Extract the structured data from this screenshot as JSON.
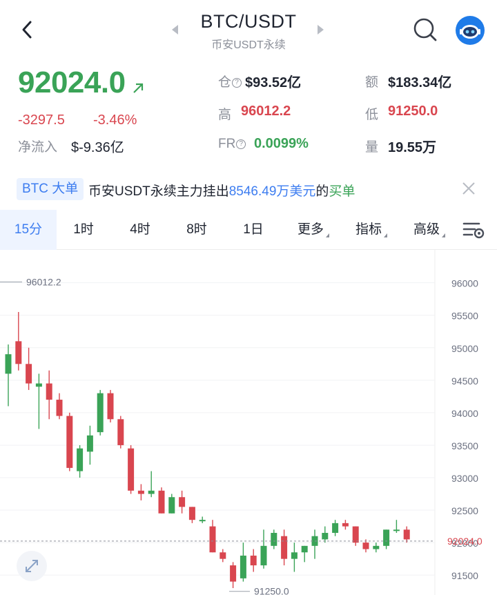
{
  "header": {
    "title": "BTC/USDT",
    "subtitle": "币安USDT永续",
    "icons": [
      "back-arrow-icon",
      "prev-symbol-icon",
      "next-symbol-icon",
      "search-icon",
      "robot-avatar-icon"
    ]
  },
  "ticker": {
    "price": "92024.0",
    "change": "-3297.5",
    "change_pct": "-3.46%",
    "inflow_label": "净流入",
    "inflow_value": "$-9.36亿",
    "open_interest_label": "仓",
    "open_interest_value": "$93.52亿",
    "turnover_label": "额",
    "turnover_value": "$183.34亿",
    "high_label": "高",
    "high_value": "96012.2",
    "low_label": "低",
    "low_value": "91250.0",
    "fr_label": "FR",
    "fr_value": "0.0099%",
    "volume_label": "量",
    "volume_value": "19.55万",
    "qmark": "?"
  },
  "banner": {
    "badge": "BTC 大单",
    "text_prefix": "币安USDT永续主力挂出",
    "amount": "8546.49万美元",
    "text_mid": "的",
    "side": "买单"
  },
  "tabs": [
    {
      "label": "15分",
      "active": true
    },
    {
      "label": "1时"
    },
    {
      "label": "4时"
    },
    {
      "label": "8时"
    },
    {
      "label": "1日"
    },
    {
      "label": "更多"
    },
    {
      "label": "指标"
    },
    {
      "label": "高级"
    }
  ],
  "colors": {
    "up": "#3aa357",
    "down": "#d9464f",
    "accent": "#3d7df0"
  },
  "chart_data": {
    "type": "candlestick",
    "interval": "15分",
    "y_ticks": [
      96000,
      95500,
      95000,
      94500,
      94000,
      93500,
      93000,
      92500,
      92000,
      91500
    ],
    "y_tick_labels": [
      "96000",
      "95500",
      "95000",
      "94500",
      "94000",
      "93500",
      "93000",
      "92500",
      "92000",
      "91500"
    ],
    "ylim": [
      91300,
      96400
    ],
    "current_price": 92024.0,
    "current_price_label": "92024.0",
    "high_marker": {
      "value": 96012.2,
      "label": "96012.2"
    },
    "low_marker": {
      "value": 91250.0,
      "label": "91250.0"
    },
    "candles": [
      {
        "o": 94600,
        "h": 95050,
        "l": 94100,
        "c": 94900
      },
      {
        "o": 95100,
        "h": 95550,
        "l": 94650,
        "c": 94750
      },
      {
        "o": 94750,
        "h": 95000,
        "l": 94350,
        "c": 94450
      },
      {
        "o": 94400,
        "h": 94600,
        "l": 93750,
        "c": 94450
      },
      {
        "o": 94450,
        "h": 94650,
        "l": 93900,
        "c": 94200
      },
      {
        "o": 94200,
        "h": 94300,
        "l": 93900,
        "c": 93950
      },
      {
        "o": 93950,
        "h": 94000,
        "l": 93100,
        "c": 93150
      },
      {
        "o": 93100,
        "h": 93500,
        "l": 93000,
        "c": 93450
      },
      {
        "o": 93400,
        "h": 93800,
        "l": 93200,
        "c": 93650
      },
      {
        "o": 93700,
        "h": 94350,
        "l": 93650,
        "c": 94300
      },
      {
        "o": 94300,
        "h": 94350,
        "l": 93850,
        "c": 93900
      },
      {
        "o": 93900,
        "h": 93950,
        "l": 93450,
        "c": 93500
      },
      {
        "o": 93450,
        "h": 93500,
        "l": 92750,
        "c": 92800
      },
      {
        "o": 92800,
        "h": 92900,
        "l": 92650,
        "c": 92750
      },
      {
        "o": 92750,
        "h": 93100,
        "l": 92700,
        "c": 92800
      },
      {
        "o": 92800,
        "h": 92850,
        "l": 92450,
        "c": 92450
      },
      {
        "o": 92450,
        "h": 92750,
        "l": 92450,
        "c": 92700
      },
      {
        "o": 92700,
        "h": 92800,
        "l": 92450,
        "c": 92550
      },
      {
        "o": 92550,
        "h": 92550,
        "l": 92300,
        "c": 92350
      },
      {
        "o": 92350,
        "h": 92400,
        "l": 92300,
        "c": 92350
      },
      {
        "o": 92250,
        "h": 92350,
        "l": 91850,
        "c": 91850
      },
      {
        "o": 91850,
        "h": 91900,
        "l": 91700,
        "c": 91750
      },
      {
        "o": 91650,
        "h": 91700,
        "l": 91300,
        "c": 91400
      },
      {
        "o": 91450,
        "h": 92000,
        "l": 91400,
        "c": 91800
      },
      {
        "o": 91800,
        "h": 91900,
        "l": 91550,
        "c": 91650
      },
      {
        "o": 91650,
        "h": 92200,
        "l": 91600,
        "c": 91950
      },
      {
        "o": 91950,
        "h": 92200,
        "l": 91900,
        "c": 92150
      },
      {
        "o": 92100,
        "h": 92200,
        "l": 91650,
        "c": 91750
      },
      {
        "o": 91750,
        "h": 92000,
        "l": 91550,
        "c": 91850
      },
      {
        "o": 91850,
        "h": 91950,
        "l": 91700,
        "c": 91950
      },
      {
        "o": 91950,
        "h": 92200,
        "l": 91750,
        "c": 92100
      },
      {
        "o": 92050,
        "h": 92250,
        "l": 92000,
        "c": 92150
      },
      {
        "o": 92150,
        "h": 92350,
        "l": 92100,
        "c": 92300
      },
      {
        "o": 92300,
        "h": 92350,
        "l": 92200,
        "c": 92250
      },
      {
        "o": 92250,
        "h": 92250,
        "l": 91950,
        "c": 92000
      },
      {
        "o": 92000,
        "h": 92050,
        "l": 91850,
        "c": 91900
      },
      {
        "o": 91900,
        "h": 92000,
        "l": 91850,
        "c": 91950
      },
      {
        "o": 91950,
        "h": 92200,
        "l": 91900,
        "c": 92200
      },
      {
        "o": 92200,
        "h": 92350,
        "l": 92150,
        "c": 92200
      },
      {
        "o": 92200,
        "h": 92250,
        "l": 92000,
        "c": 92050
      }
    ]
  }
}
